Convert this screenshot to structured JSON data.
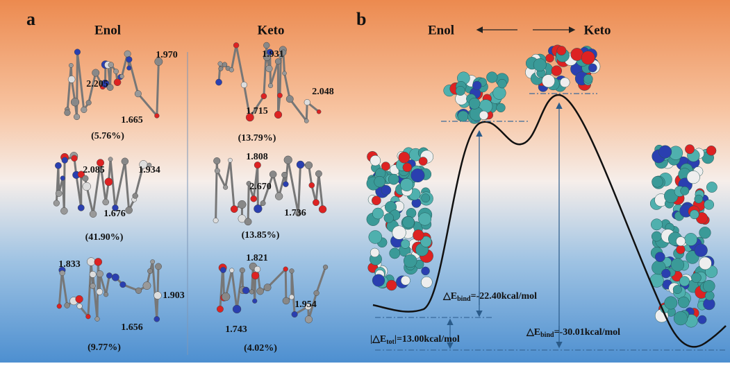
{
  "panel_a": {
    "label": "a",
    "enol": {
      "heading": "Enol",
      "conformers": [
        {
          "distances": [
            "1.970",
            "2.205",
            "1.665"
          ],
          "population": "(5.76%)"
        },
        {
          "distances": [
            "2.085",
            "1.934",
            "1.676"
          ],
          "population": "(41.90%)"
        },
        {
          "distances": [
            "1.833",
            "1.903",
            "1.656"
          ],
          "population": "(9.77%)"
        }
      ]
    },
    "keto": {
      "heading": "Keto",
      "conformers": [
        {
          "distances": [
            "1.931",
            "2.048",
            "1.715"
          ],
          "population": "(13.79%)"
        },
        {
          "distances": [
            "1.808",
            "2.670",
            "1.736"
          ],
          "population": "(13.85%)"
        },
        {
          "distances": [
            "1.821",
            "1.954",
            "1.743"
          ],
          "population": "(4.02%)"
        }
      ]
    }
  },
  "panel_b": {
    "label": "b",
    "enol": "Enol",
    "keto": "Keto",
    "energies": [
      {
        "prefix": "△E",
        "sub": "bind",
        "rest": "=-22.40kcal/mol"
      },
      {
        "prefix": "|△E",
        "sub": "tot",
        "rest": "|=13.00kcal/mol"
      },
      {
        "prefix": "△E",
        "sub": "bind",
        "rest": "=-30.01kcal/mol"
      }
    ]
  }
}
